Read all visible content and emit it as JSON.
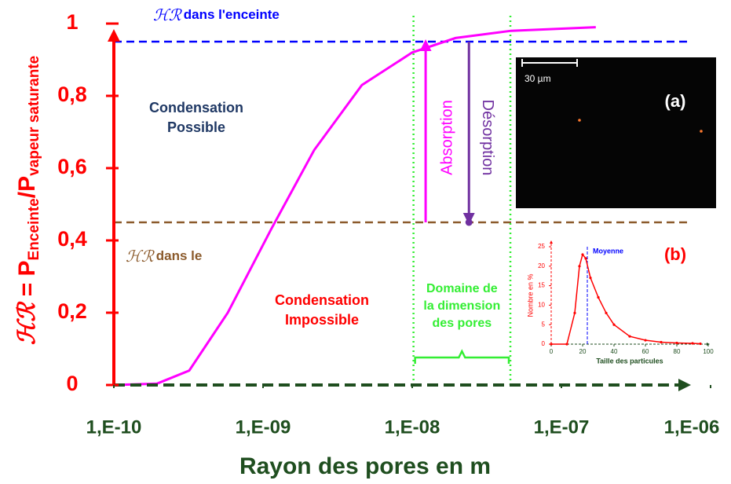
{
  "chart_data": [
    {
      "type": "line",
      "x_label": "Rayon des pores en m",
      "y_label": {
        "symbol": "ℋℛ",
        "main": " = P",
        "sub1": "Enceinte",
        "mid": "/P",
        "sub2": "vapeur saturante"
      },
      "log_x": true,
      "xlim": [
        1e-10,
        1e-06
      ],
      "xticks": [
        {
          "value": 1e-10,
          "label": "1,E-10"
        },
        {
          "value": 1e-09,
          "label": "1,E-09"
        },
        {
          "value": 1e-08,
          "label": "1,E-08"
        },
        {
          "value": 1e-07,
          "label": "1,E-07"
        },
        {
          "value": 1e-06,
          "label": "1,E-06"
        }
      ],
      "ylim": [
        0,
        1
      ],
      "yticks": [
        0,
        {
          "value": 0.2,
          "label": "0,2"
        },
        {
          "value": 0.4,
          "label": "0,4"
        },
        {
          "value": 0.6,
          "label": "0,6"
        },
        {
          "value": 0.8,
          "label": "0,8"
        },
        1
      ],
      "x": [
        1e-10,
        1.95e-10,
        3.2e-10,
        5.8e-10,
        1.13e-09,
        2.2e-09,
        4.6e-09,
        1e-08,
        1.95e-08,
        4.6e-08,
        1.7e-07
      ],
      "values": [
        0,
        0.004,
        0.04,
        0.2,
        0.43,
        0.65,
        0.83,
        0.92,
        0.96,
        0.98,
        0.99
      ],
      "color": "#ff00ff",
      "levels": [
        {
          "value": 0.95,
          "symbol": "ℋℛ",
          "text": "dans l'enceinte",
          "color": "#0000ff"
        },
        {
          "value": 0.45,
          "symbol": "ℋℛ",
          "text": "dans le",
          "color": "#8b5a2b"
        }
      ],
      "pore_domain": {
        "xlim": [
          1.02e-08,
          4.55e-08
        ],
        "lines": [
          "Domaine de",
          "la dimension",
          "des pores"
        ],
        "color": "#33ee33"
      },
      "arrows": [
        {
          "label": "Absorption",
          "x": 1.23e-08,
          "from": 0.45,
          "to": 0.95,
          "color": "#ff00ff"
        },
        {
          "label": "Désorption",
          "x": 2.4e-08,
          "from": 0.95,
          "to": 0.45,
          "color": "#7030a0"
        }
      ],
      "regions": [
        {
          "lines": [
            "Condensation",
            "Possible"
          ],
          "color": "#1f3864"
        },
        {
          "lines": [
            "Condensation",
            "Impossible"
          ],
          "color": "#ff0000"
        }
      ],
      "micrograph": {
        "label": "(a)",
        "scale": "30 µm"
      }
    },
    {
      "type": "line",
      "panel_label": "(b)",
      "x_label": "Taille des particules",
      "y_label": "Nombre en %",
      "xlim": [
        0,
        100
      ],
      "xticks": [
        0,
        20,
        40,
        60,
        80,
        100
      ],
      "ylim": [
        0,
        25
      ],
      "yticks": [
        0,
        5,
        10,
        15,
        20,
        25
      ],
      "x": [
        0,
        10,
        15,
        18,
        20,
        22,
        25,
        30,
        35,
        40,
        50,
        60,
        70,
        80,
        90,
        95
      ],
      "values": [
        0,
        0,
        8,
        20,
        23,
        22,
        17,
        12,
        8,
        5,
        2,
        1,
        0.5,
        0.3,
        0.2,
        0.1
      ],
      "color": "#ff0000",
      "mean": {
        "value": 23,
        "label": "Moyenne"
      }
    }
  ]
}
